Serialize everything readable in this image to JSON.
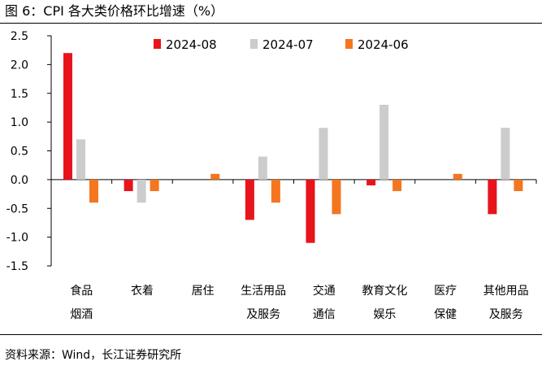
{
  "figure": {
    "title": "图 6：CPI 各大类价格环比增速（%）",
    "source": "资料来源：Wind，长江证券研究所"
  },
  "chart_data": {
    "type": "bar",
    "title": "",
    "xlabel": "",
    "ylabel": "",
    "ylim": [
      -1.5,
      2.5
    ],
    "yticks": [
      "2.5",
      "2.0",
      "1.5",
      "1.0",
      "0.5",
      "0.0",
      "-0.5",
      "-1.0",
      "-1.5"
    ],
    "grid": false,
    "legend_position": "top",
    "categories": [
      [
        "食品",
        "烟酒"
      ],
      [
        "衣着"
      ],
      [
        "居住"
      ],
      [
        "生活用品",
        "及服务"
      ],
      [
        "交通",
        "通信"
      ],
      [
        "教育文化",
        "娱乐"
      ],
      [
        "医疗",
        "保健"
      ],
      [
        "其他用品",
        "及服务"
      ]
    ],
    "series": [
      {
        "name": "2024-08",
        "color": "#e8141c",
        "values": [
          2.2,
          -0.2,
          0.0,
          -0.7,
          -1.1,
          -0.1,
          0.0,
          -0.6
        ]
      },
      {
        "name": "2024-07",
        "color": "#cccccc",
        "values": [
          0.7,
          -0.4,
          0.0,
          0.4,
          0.9,
          1.3,
          0.0,
          0.9
        ]
      },
      {
        "name": "2024-06",
        "color": "#f4761f",
        "values": [
          -0.4,
          -0.2,
          0.1,
          -0.4,
          -0.6,
          -0.2,
          0.1,
          -0.2
        ]
      }
    ]
  }
}
